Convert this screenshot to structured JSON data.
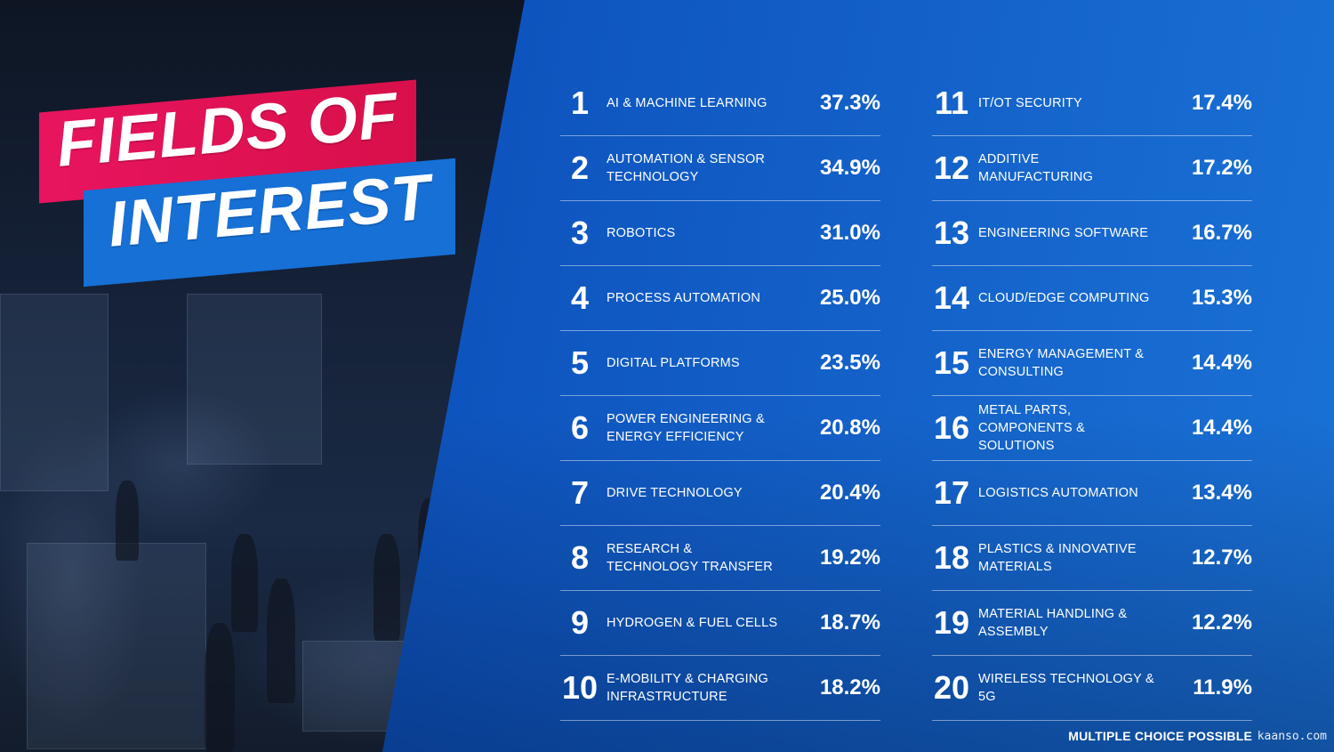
{
  "title": {
    "line1": "FIELDS OF",
    "line2": "INTEREST"
  },
  "colors": {
    "title_pink": "#e8145f",
    "title_blue": "#1670d6",
    "panel_blue": "#0f56c0"
  },
  "chart_data": {
    "type": "table",
    "columns": [
      [
        {
          "rank": "1",
          "label": "AI & MACHINE LEARNING",
          "value": 37.3,
          "value_text": "37.3%"
        },
        {
          "rank": "2",
          "label": "AUTOMATION & SENSOR TECHNOLOGY",
          "value": 34.9,
          "value_text": "34.9%"
        },
        {
          "rank": "3",
          "label": "ROBOTICS",
          "value": 31.0,
          "value_text": "31.0%"
        },
        {
          "rank": "4",
          "label": "PROCESS AUTOMATION",
          "value": 25.0,
          "value_text": "25.0%"
        },
        {
          "rank": "5",
          "label": "DIGITAL PLATFORMS",
          "value": 23.5,
          "value_text": "23.5%"
        },
        {
          "rank": "6",
          "label": "POWER ENGINEERING & ENERGY EFFICIENCY",
          "value": 20.8,
          "value_text": "20.8%"
        },
        {
          "rank": "7",
          "label": "DRIVE TECHNOLOGY",
          "value": 20.4,
          "value_text": "20.4%"
        },
        {
          "rank": "8",
          "label": "RESEARCH & TECHNOLOGY TRANSFER",
          "value": 19.2,
          "value_text": "19.2%"
        },
        {
          "rank": "9",
          "label": "HYDROGEN & FUEL CELLS",
          "value": 18.7,
          "value_text": "18.7%"
        },
        {
          "rank": "10",
          "label": "E-MOBILITY & CHARGING INFRASTRUCTURE",
          "value": 18.2,
          "value_text": "18.2%"
        }
      ],
      [
        {
          "rank": "11",
          "label": "IT/OT SECURITY",
          "value": 17.4,
          "value_text": "17.4%"
        },
        {
          "rank": "12",
          "label": "ADDITIVE MANUFACTURING",
          "value": 17.2,
          "value_text": "17.2%"
        },
        {
          "rank": "13",
          "label": "ENGINEERING SOFTWARE",
          "value": 16.7,
          "value_text": "16.7%"
        },
        {
          "rank": "14",
          "label": "CLOUD/EDGE COMPUTING",
          "value": 15.3,
          "value_text": "15.3%"
        },
        {
          "rank": "15",
          "label": "ENERGY MANAGEMENT & CONSULTING",
          "value": 14.4,
          "value_text": "14.4%"
        },
        {
          "rank": "16",
          "label": "METAL PARTS, COMPONENTS & SOLUTIONS",
          "value": 14.4,
          "value_text": "14.4%"
        },
        {
          "rank": "17",
          "label": "LOGISTICS AUTOMATION",
          "value": 13.4,
          "value_text": "13.4%"
        },
        {
          "rank": "18",
          "label": "PLASTICS & INNOVATIVE MATERIALS",
          "value": 12.7,
          "value_text": "12.7%"
        },
        {
          "rank": "19",
          "label": "MATERIAL HANDLING & ASSEMBLY",
          "value": 12.2,
          "value_text": "12.2%"
        },
        {
          "rank": "20",
          "label": "WIRELESS TECHNOLOGY & 5G",
          "value": 11.9,
          "value_text": "11.9%"
        }
      ]
    ]
  },
  "footer": {
    "note": "MULTIPLE CHOICE POSSIBLE",
    "watermark": "kaanso.com"
  }
}
